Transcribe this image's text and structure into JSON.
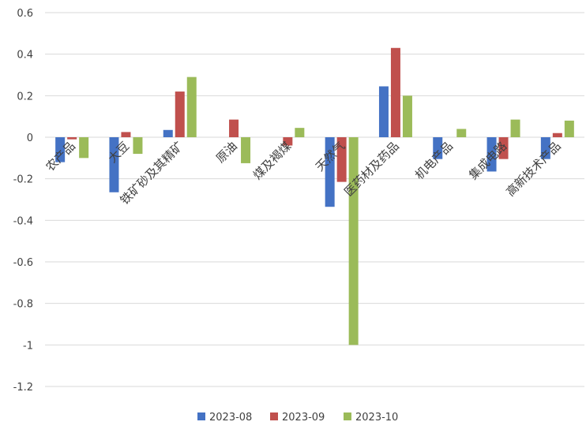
{
  "chart_data": {
    "type": "bar",
    "categories": [
      "农产品",
      "大豆",
      "铁矿砂及其精矿",
      "原油",
      "煤及褐煤",
      "天然气",
      "医药材及药品",
      "机电产品",
      "集成电路",
      "高新技术产品"
    ],
    "series": [
      {
        "name": "2023-08",
        "color": "#4472C4",
        "values": [
          -0.12,
          -0.265,
          0.035,
          0.0,
          0.0,
          -0.335,
          0.245,
          -0.105,
          -0.165,
          -0.105
        ]
      },
      {
        "name": "2023-09",
        "color": "#C0504D",
        "values": [
          -0.01,
          0.025,
          0.22,
          0.085,
          -0.04,
          -0.215,
          0.43,
          0.0,
          -0.105,
          0.02
        ]
      },
      {
        "name": "2023-10",
        "color": "#9BBB59",
        "values": [
          -0.1,
          -0.08,
          0.29,
          -0.125,
          0.045,
          -1.0,
          0.2,
          0.04,
          0.085,
          0.08
        ]
      }
    ],
    "y_ticks": [
      "0.6",
      "0.4",
      "0.2",
      "0",
      "-0.2",
      "-0.4",
      "-0.6",
      "-0.8",
      "-1",
      "-1.2"
    ],
    "ylim": [
      -1.2,
      0.6
    ],
    "grid": true,
    "legend_position": "bottom"
  }
}
